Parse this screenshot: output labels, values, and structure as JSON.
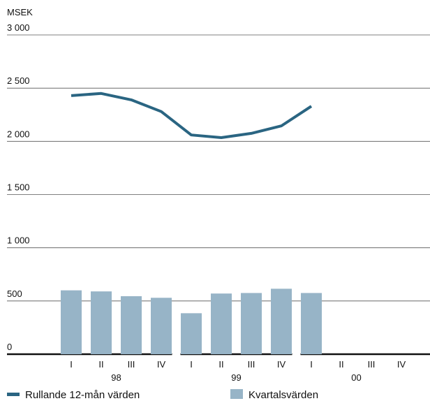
{
  "chart_data": {
    "type": "bar",
    "y_label": "MSEK",
    "categories": [
      "I",
      "II",
      "III",
      "IV",
      "I",
      "II",
      "III",
      "IV",
      "I",
      "II",
      "III",
      "IV"
    ],
    "group_labels": [
      "98",
      "99",
      "00"
    ],
    "series": [
      {
        "name": "Kvartalsvärden",
        "type": "bar",
        "color": "#97b4c7",
        "values": [
          600,
          590,
          545,
          530,
          385,
          570,
          575,
          615,
          575,
          null,
          null,
          null
        ]
      },
      {
        "name": "Rullande 12-mån värden",
        "type": "line",
        "color": "#2a6582",
        "values": [
          2430,
          2450,
          2390,
          2280,
          2060,
          2035,
          2075,
          2145,
          2330,
          null,
          null,
          null
        ]
      }
    ],
    "ylim": [
      0,
      3000
    ],
    "yticks": [
      0,
      500,
      {
        "value": 1000,
        "label": "1 000"
      },
      {
        "value": 1500,
        "label": "1 500"
      },
      {
        "value": 2000,
        "label": "2 000"
      },
      {
        "value": 2500,
        "label": "2 500"
      },
      {
        "value": 3000,
        "label": "3 000"
      }
    ],
    "grid": true
  }
}
